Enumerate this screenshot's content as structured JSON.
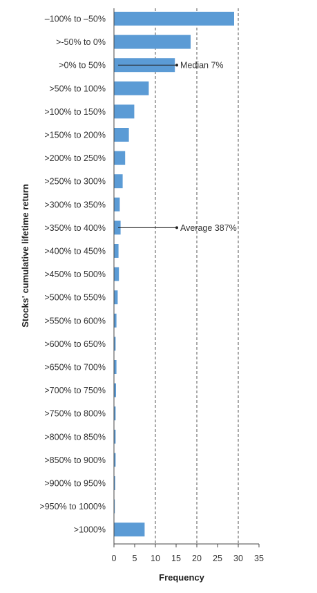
{
  "chart_data": {
    "type": "bar",
    "orientation": "horizontal",
    "categories": [
      "–100% to –50%",
      ">-50% to 0%",
      ">0% to 50%",
      ">50% to 100%",
      ">100% to 150%",
      ">150% to 200%",
      ">200% to 250%",
      ">250% to 300%",
      ">300% to 350%",
      ">350% to 400%",
      ">400% to 450%",
      ">450% to 500%",
      ">500% to 550%",
      ">550% to 600%",
      ">600% to 650%",
      ">650% to 700%",
      ">700% to 750%",
      ">750% to 800%",
      ">800% to 850%",
      ">850% to 900%",
      ">900% to 950%",
      ">950% to 1000%",
      ">1000%"
    ],
    "values": [
      29,
      18.5,
      14.7,
      8.4,
      4.9,
      3.6,
      2.7,
      2.1,
      1.4,
      1.6,
      1.1,
      1.2,
      0.9,
      0.6,
      0.4,
      0.6,
      0.5,
      0.4,
      0.4,
      0.4,
      0.3,
      0.2,
      7.4
    ],
    "xlabel": "Frequency",
    "ylabel": "Stocks' cumulative lifetime return",
    "xlim": [
      0,
      35
    ],
    "xticks": [
      "0",
      "5",
      "10",
      "15",
      "20",
      "25",
      "30",
      "35"
    ],
    "grid": "vertical dashed at 10, 20, 30",
    "bar_color": "#5b9bd5",
    "annotations": [
      {
        "text": "Median 7%",
        "category_index": 2,
        "x": 15.5
      },
      {
        "text": "Average 387%",
        "category_index": 9,
        "x": 15.5
      }
    ]
  }
}
